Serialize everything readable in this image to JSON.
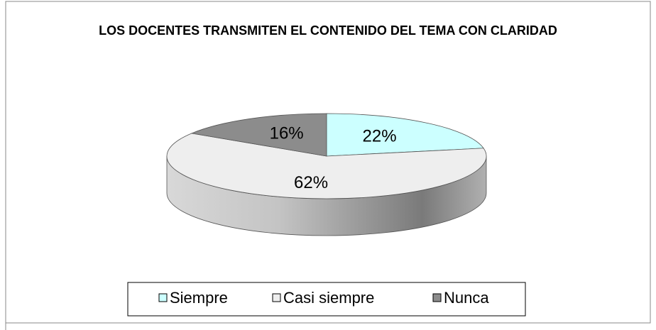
{
  "chart_data": {
    "type": "pie3d",
    "title": "LOS DOCENTES TRANSMITEN EL CONTENIDO DEL TEMA CON CLARIDAD",
    "categories": [
      "Siempre",
      "Casi siempre",
      "Nunca"
    ],
    "values": [
      22,
      62,
      16
    ],
    "value_labels": [
      "22%",
      "62%",
      "16%"
    ],
    "colors": [
      "#ccffff",
      "#eeeeee",
      "#8c8c8c"
    ],
    "legend": "bottom"
  }
}
